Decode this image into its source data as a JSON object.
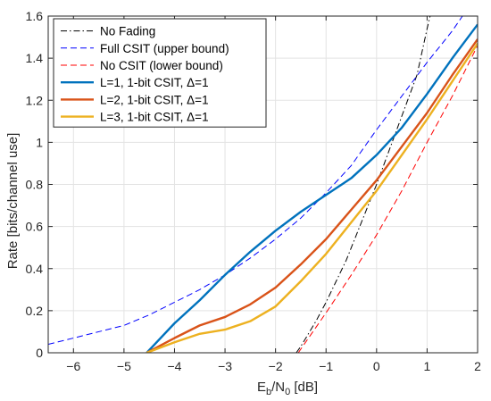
{
  "chart_data": {
    "type": "line",
    "xlabel": {
      "base": "E",
      "sub1": "b",
      "mid": "/N",
      "sub2": "0",
      "tail": " [dB]"
    },
    "ylabel": "Rate [bits/channel use]",
    "xlim": [
      -6.5,
      2
    ],
    "ylim": [
      0,
      1.6
    ],
    "xticks": [
      -6,
      -5,
      -4,
      -3,
      -2,
      -1,
      0,
      1,
      2
    ],
    "yticks": [
      0,
      0.2,
      0.4,
      0.6,
      0.8,
      1,
      1.2,
      1.4,
      1.6
    ],
    "xtick_labels": [
      "−6",
      "−5",
      "−4",
      "−3",
      "−2",
      "−1",
      "0",
      "1",
      "2"
    ],
    "ytick_labels": [
      "0",
      "0.2",
      "0.4",
      "0.6",
      "0.8",
      "1",
      "1.2",
      "1.4",
      "1.6"
    ],
    "grid": true,
    "legend_position": "top-left",
    "series": [
      {
        "name": "No Fading",
        "color": "#000000",
        "dash": "dashdot",
        "width": 1,
        "x": [
          -1.59,
          -1.5,
          -1.2,
          -1.0,
          -0.8,
          -0.6,
          -0.4,
          -0.2,
          0.0,
          0.2,
          0.4,
          0.6,
          0.8,
          1.0,
          1.06
        ],
        "y": [
          0.0,
          0.03,
          0.15,
          0.24,
          0.34,
          0.44,
          0.56,
          0.68,
          0.8,
          0.93,
          1.06,
          1.19,
          1.32,
          1.54,
          1.6
        ]
      },
      {
        "name": "Full CSIT (upper bound)",
        "color": "#0000ff",
        "dash": "dashed",
        "width": 1,
        "x": [
          -6.5,
          -6.0,
          -5.5,
          -5.0,
          -4.5,
          -4.0,
          -3.5,
          -3.0,
          -2.5,
          -2.0,
          -1.5,
          -1.0,
          -0.5,
          0.0,
          0.5,
          1.0,
          1.5,
          1.7
        ],
        "y": [
          0.04,
          0.07,
          0.1,
          0.13,
          0.18,
          0.24,
          0.3,
          0.37,
          0.45,
          0.54,
          0.64,
          0.76,
          0.89,
          1.06,
          1.22,
          1.38,
          1.53,
          1.6
        ]
      },
      {
        "name": "No CSIT (lower bound)",
        "color": "#ff0000",
        "dash": "dashed",
        "width": 1,
        "x": [
          -1.55,
          -1.0,
          -0.5,
          0.0,
          0.5,
          1.0,
          1.5,
          2.0
        ],
        "y": [
          0.0,
          0.19,
          0.37,
          0.56,
          0.77,
          1.0,
          1.22,
          1.46
        ]
      },
      {
        "name": "L=1, 1-bit CSIT,  Δ=1",
        "color": "#0072bd",
        "dash": "solid",
        "width": 2.4,
        "x": [
          -4.55,
          -4.0,
          -3.5,
          -3.0,
          -2.5,
          -2.0,
          -1.5,
          -1.0,
          -0.5,
          0.0,
          0.5,
          1.0,
          1.5,
          2.0
        ],
        "y": [
          0.0,
          0.14,
          0.25,
          0.37,
          0.48,
          0.58,
          0.67,
          0.75,
          0.83,
          0.94,
          1.07,
          1.23,
          1.4,
          1.56
        ]
      },
      {
        "name": "L=2, 1-bit CSIT,  Δ=1",
        "color": "#d95319",
        "dash": "solid",
        "width": 2.4,
        "x": [
          -4.55,
          -4.0,
          -3.5,
          -3.0,
          -2.5,
          -2.0,
          -1.5,
          -1.0,
          -0.5,
          0.0,
          0.5,
          1.0,
          1.5,
          2.0
        ],
        "y": [
          0.0,
          0.07,
          0.13,
          0.17,
          0.23,
          0.31,
          0.42,
          0.54,
          0.68,
          0.82,
          0.98,
          1.14,
          1.32,
          1.49
        ]
      },
      {
        "name": "L=3, 1-bit CSIT,  Δ=1",
        "color": "#edb120",
        "dash": "solid",
        "width": 2.4,
        "x": [
          -4.55,
          -4.0,
          -3.5,
          -3.0,
          -2.5,
          -2.0,
          -1.5,
          -1.0,
          -0.5,
          0.0,
          0.5,
          1.0,
          1.5,
          2.0
        ],
        "y": [
          0.0,
          0.05,
          0.09,
          0.11,
          0.15,
          0.22,
          0.34,
          0.47,
          0.62,
          0.77,
          0.94,
          1.11,
          1.29,
          1.47
        ]
      }
    ]
  }
}
